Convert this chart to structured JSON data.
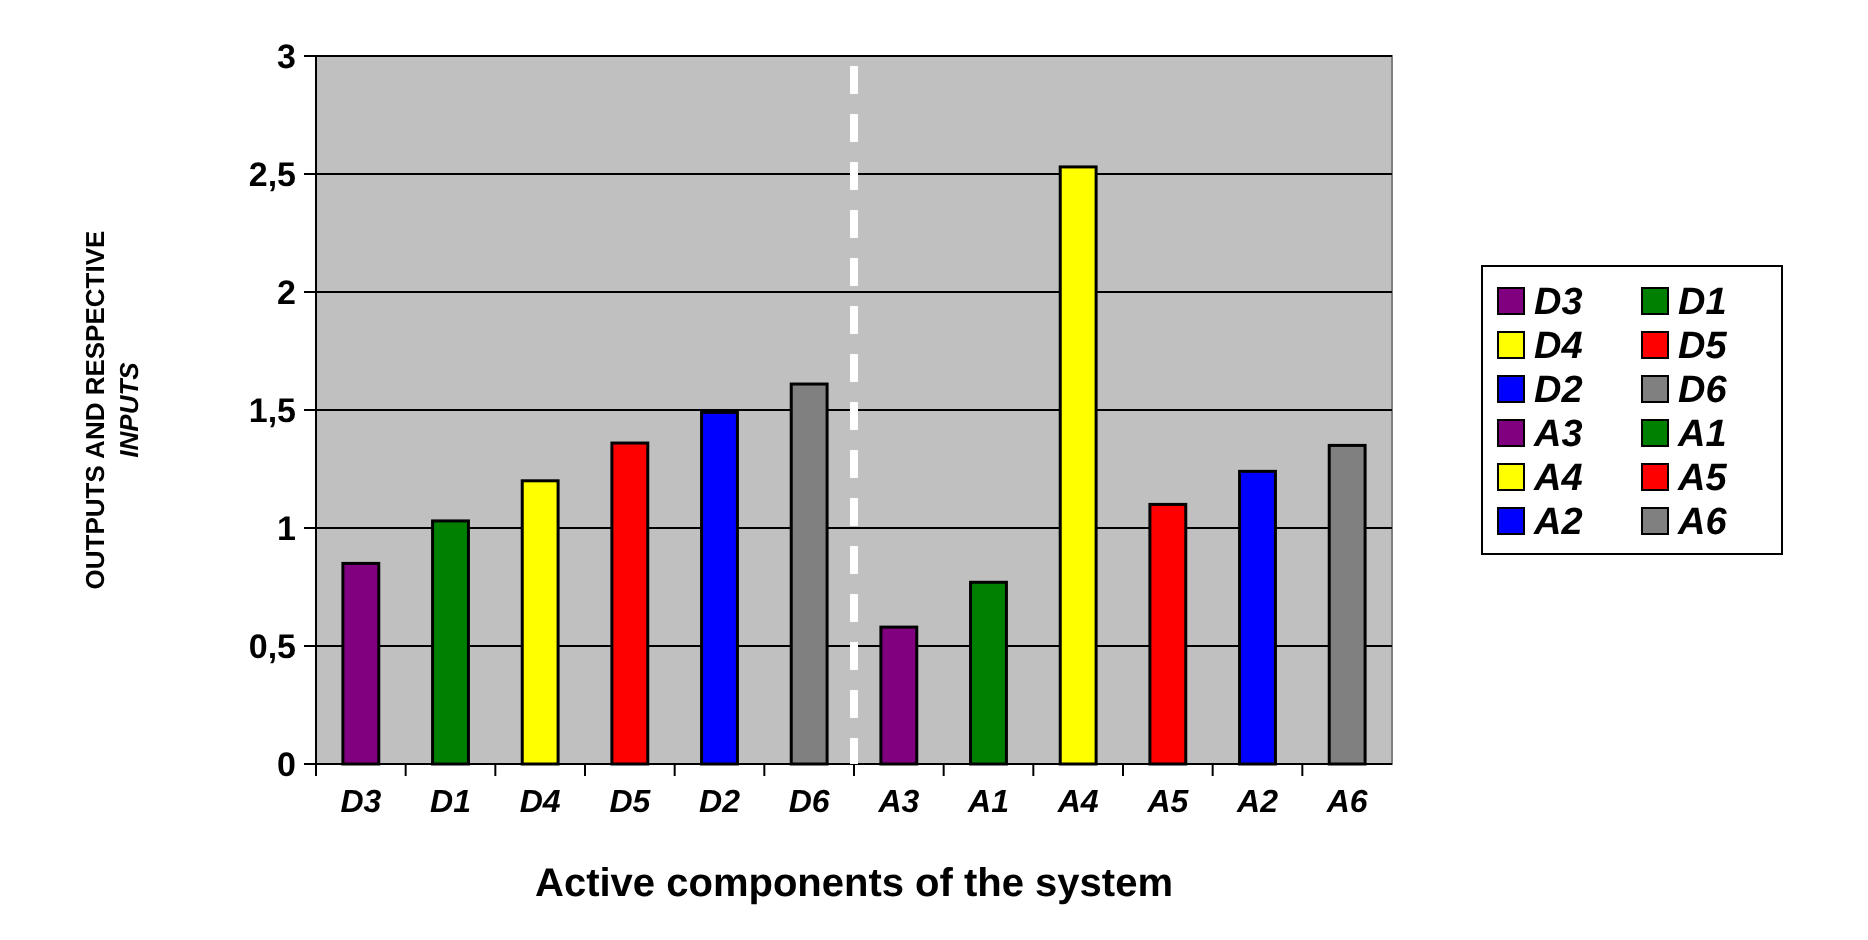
{
  "chart_data": {
    "type": "bar",
    "xlabel": "Active components of the system",
    "ylabel": "OUTPUTS AND RESPECTIVE INPUTS",
    "categories": [
      "D3",
      "D1",
      "D4",
      "D5",
      "D2",
      "D6",
      "A3",
      "A1",
      "A4",
      "A5",
      "A2",
      "A6"
    ],
    "series": [
      {
        "name": "D3",
        "color": "#800080",
        "values": [
          0.85,
          null,
          null,
          null,
          null,
          null,
          null,
          null,
          null,
          null,
          null,
          null
        ]
      },
      {
        "name": "D1",
        "color": "#008000",
        "values": [
          null,
          1.03,
          null,
          null,
          null,
          null,
          null,
          null,
          null,
          null,
          null,
          null
        ]
      },
      {
        "name": "D4",
        "color": "#ffff00",
        "values": [
          null,
          null,
          1.2,
          null,
          null,
          null,
          null,
          null,
          null,
          null,
          null,
          null
        ]
      },
      {
        "name": "D5",
        "color": "#ff0000",
        "values": [
          null,
          null,
          null,
          1.36,
          null,
          null,
          null,
          null,
          null,
          null,
          null,
          null
        ]
      },
      {
        "name": "D2",
        "color": "#0000ff",
        "values": [
          null,
          null,
          null,
          null,
          1.49,
          null,
          null,
          null,
          null,
          null,
          null,
          null
        ]
      },
      {
        "name": "D6",
        "color": "#808080",
        "values": [
          null,
          null,
          null,
          null,
          null,
          1.61,
          null,
          null,
          null,
          null,
          null,
          null
        ]
      },
      {
        "name": "A3",
        "color": "#800080",
        "values": [
          null,
          null,
          null,
          null,
          null,
          null,
          0.58,
          null,
          null,
          null,
          null,
          null
        ]
      },
      {
        "name": "A1",
        "color": "#008000",
        "values": [
          null,
          null,
          null,
          null,
          null,
          null,
          null,
          0.77,
          null,
          null,
          null,
          null
        ]
      },
      {
        "name": "A4",
        "color": "#ffff00",
        "values": [
          null,
          null,
          null,
          null,
          null,
          null,
          null,
          null,
          2.53,
          null,
          null,
          null
        ]
      },
      {
        "name": "A5",
        "color": "#ff0000",
        "values": [
          null,
          null,
          null,
          null,
          null,
          null,
          null,
          null,
          null,
          1.1,
          null,
          null
        ]
      },
      {
        "name": "A2",
        "color": "#0000ff",
        "values": [
          null,
          null,
          null,
          null,
          null,
          null,
          null,
          null,
          null,
          null,
          1.24,
          null
        ]
      },
      {
        "name": "A6",
        "color": "#808080",
        "values": [
          null,
          null,
          null,
          null,
          null,
          null,
          null,
          null,
          null,
          null,
          null,
          1.35
        ]
      }
    ],
    "ylim": [
      0,
      3
    ],
    "yticks": [
      0,
      {
        "value": 0.5,
        "label": "0,5"
      },
      1,
      {
        "value": 1.5,
        "label": "1,5"
      },
      2,
      {
        "value": 2.5,
        "label": "2,5"
      },
      3
    ],
    "ref_lines": [
      {
        "axis": "x",
        "value": "A3",
        "color": "#ffffff",
        "line_style": "dashed"
      }
    ],
    "grid": "y",
    "legend": "right"
  }
}
